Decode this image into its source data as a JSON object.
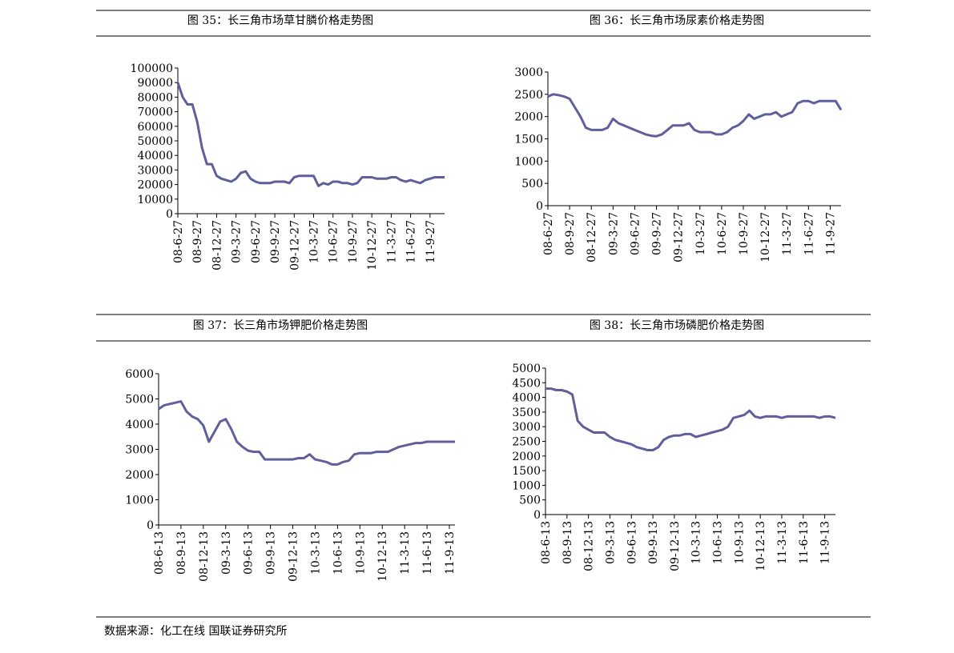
{
  "chart_data": [
    {
      "type": "line",
      "title": "图 35：长三角市场草甘膦价格走势图",
      "categories": [
        "08-6-27",
        null,
        null,
        null,
        "08-9-27",
        null,
        null,
        null,
        "08-12-27",
        null,
        null,
        null,
        "09-3-27",
        null,
        null,
        null,
        "09-6-27",
        null,
        null,
        null,
        "09-9-27",
        null,
        null,
        null,
        "09-12-27",
        null,
        null,
        null,
        "10-3-27",
        null,
        null,
        null,
        "10-6-27",
        null,
        null,
        null,
        "10-9-27",
        null,
        null,
        null,
        "10-12-27",
        null,
        null,
        null,
        "11-3-27",
        null,
        null,
        null,
        "11-6-27",
        null,
        null,
        null,
        "11-9-27",
        null,
        null,
        null
      ],
      "series": [
        {
          "color": "#5f5f9b",
          "values": [
            90000,
            80000,
            75000,
            75000,
            63000,
            45000,
            34000,
            34000,
            26000,
            24000,
            23000,
            22000,
            24000,
            28000,
            29000,
            24000,
            22000,
            21000,
            21000,
            21000,
            22000,
            22000,
            22000,
            21000,
            25000,
            26000,
            26000,
            26000,
            26000,
            19000,
            21000,
            20000,
            22000,
            22000,
            21000,
            21000,
            20000,
            21000,
            25000,
            25000,
            25000,
            24000,
            24000,
            24000,
            25000,
            25000,
            23000,
            22000,
            23000,
            22000,
            21000,
            23000,
            24000,
            25000,
            25000,
            25000
          ]
        }
      ],
      "ylim": [
        0,
        100000
      ],
      "yticks": [
        0,
        10000,
        20000,
        30000,
        40000,
        50000,
        60000,
        70000,
        80000,
        90000,
        100000
      ]
    },
    {
      "type": "line",
      "title": "图 36：长三角市场尿素价格走势图",
      "categories": [
        "08-6-27",
        null,
        null,
        null,
        "08-9-27",
        null,
        null,
        null,
        "08-12-27",
        null,
        null,
        null,
        "09-3-27",
        null,
        null,
        null,
        "09-6-27",
        null,
        null,
        null,
        "09-9-27",
        null,
        null,
        null,
        "09-12-27",
        null,
        null,
        null,
        "10-3-27",
        null,
        null,
        null,
        "10-6-27",
        null,
        null,
        null,
        "10-9-27",
        null,
        null,
        null,
        "10-12-27",
        null,
        null,
        null,
        "11-3-27",
        null,
        null,
        null,
        "11-6-27",
        null,
        null,
        null,
        "11-9-27",
        null,
        null
      ],
      "series": [
        {
          "color": "#5f5f9b",
          "values": [
            2450,
            2500,
            2480,
            2450,
            2400,
            2200,
            2000,
            1750,
            1700,
            1700,
            1700,
            1750,
            1950,
            1850,
            1800,
            1750,
            1700,
            1650,
            1600,
            1570,
            1560,
            1600,
            1700,
            1800,
            1800,
            1800,
            1850,
            1700,
            1650,
            1650,
            1650,
            1600,
            1600,
            1650,
            1750,
            1800,
            1900,
            2050,
            1950,
            2000,
            2050,
            2050,
            2100,
            2000,
            2050,
            2100,
            2300,
            2350,
            2350,
            2300,
            2350,
            2350,
            2350,
            2350,
            2150
          ]
        }
      ],
      "ylim": [
        0,
        3000
      ],
      "yticks": [
        0,
        500,
        1000,
        1500,
        2000,
        2500,
        3000
      ]
    },
    {
      "type": "line",
      "title": "图 37：长三角市场钾肥价格走势图",
      "categories": [
        "08-6-13",
        null,
        null,
        null,
        "08-9-13",
        null,
        null,
        null,
        "08-12-13",
        null,
        null,
        null,
        "09-3-13",
        null,
        null,
        null,
        "09-6-13",
        null,
        null,
        null,
        "09-9-13",
        null,
        null,
        null,
        "09-12-13",
        null,
        null,
        null,
        "10-3-13",
        null,
        null,
        null,
        "10-6-13",
        null,
        null,
        null,
        "10-9-13",
        null,
        null,
        null,
        "10-12-13",
        null,
        null,
        null,
        "11-3-13",
        null,
        null,
        null,
        "11-6-13",
        null,
        null,
        null,
        "11-9-13",
        null
      ],
      "series": [
        {
          "color": "#5f5f9b",
          "values": [
            4600,
            4750,
            4800,
            4850,
            4900,
            4500,
            4300,
            4200,
            3950,
            3300,
            3700,
            4100,
            4200,
            3800,
            3300,
            3100,
            2950,
            2900,
            2900,
            2600,
            2600,
            2600,
            2600,
            2600,
            2600,
            2650,
            2650,
            2800,
            2600,
            2550,
            2500,
            2400,
            2400,
            2500,
            2550,
            2800,
            2850,
            2850,
            2850,
            2900,
            2900,
            2900,
            3000,
            3100,
            3150,
            3200,
            3250,
            3250,
            3300,
            3300,
            3300,
            3300,
            3300,
            3300
          ]
        }
      ],
      "ylim": [
        0,
        6000
      ],
      "yticks": [
        0,
        1000,
        2000,
        3000,
        4000,
        5000,
        6000
      ]
    },
    {
      "type": "line",
      "title": "图 38：长三角市场磷肥价格走势图",
      "categories": [
        "08-6-13",
        null,
        null,
        null,
        "08-9-13",
        null,
        null,
        null,
        "08-12-13",
        null,
        null,
        null,
        "09-3-13",
        null,
        null,
        null,
        "09-6-13",
        null,
        null,
        null,
        "09-9-13",
        null,
        null,
        null,
        "09-12-13",
        null,
        null,
        null,
        "10-3-13",
        null,
        null,
        null,
        "10-6-13",
        null,
        null,
        null,
        "10-9-13",
        null,
        null,
        null,
        "10-12-13",
        null,
        null,
        null,
        "11-3-13",
        null,
        null,
        null,
        "11-6-13",
        null,
        null,
        null,
        "11-9-13",
        null,
        null
      ],
      "series": [
        {
          "color": "#5f5f9b",
          "values": [
            4300,
            4300,
            4250,
            4250,
            4200,
            4100,
            3200,
            3000,
            2900,
            2800,
            2800,
            2800,
            2650,
            2550,
            2500,
            2450,
            2400,
            2300,
            2250,
            2200,
            2200,
            2300,
            2550,
            2650,
            2700,
            2700,
            2750,
            2750,
            2650,
            2700,
            2750,
            2800,
            2850,
            2900,
            3000,
            3300,
            3350,
            3400,
            3550,
            3350,
            3300,
            3350,
            3350,
            3350,
            3300,
            3350,
            3350,
            3350,
            3350,
            3350,
            3350,
            3300,
            3350,
            3350,
            3300
          ]
        }
      ],
      "ylim": [
        0,
        5000
      ],
      "yticks": [
        0,
        500,
        1000,
        1500,
        2000,
        2500,
        3000,
        3500,
        4000,
        4500,
        5000
      ]
    }
  ],
  "source": "数据来源：化工在线 国联证券研究所"
}
